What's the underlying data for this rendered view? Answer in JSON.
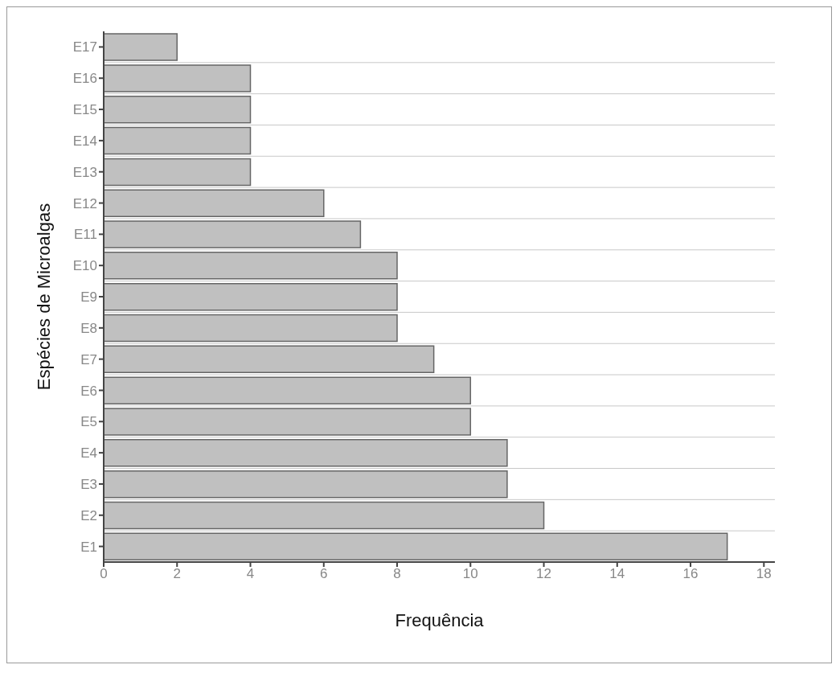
{
  "chart_data": {
    "type": "bar",
    "orientation": "horizontal",
    "xlabel": "Frequência",
    "ylabel": "Espécies de Microalgas",
    "categories": [
      "E17",
      "E16",
      "E15",
      "E14",
      "E13",
      "E12",
      "E11",
      "E10",
      "E9",
      "E8",
      "E7",
      "E6",
      "E5",
      "E4",
      "E3",
      "E2",
      "E1"
    ],
    "values": [
      2,
      4,
      4,
      4,
      4,
      6,
      7,
      8,
      8,
      8,
      9,
      10,
      10,
      11,
      11,
      12,
      17
    ],
    "color": "#c0c0c0",
    "xlim": [
      0,
      18.3
    ],
    "xticks": [
      0,
      2,
      4,
      6,
      8,
      10,
      12,
      14,
      16,
      18
    ],
    "grid": "y"
  }
}
